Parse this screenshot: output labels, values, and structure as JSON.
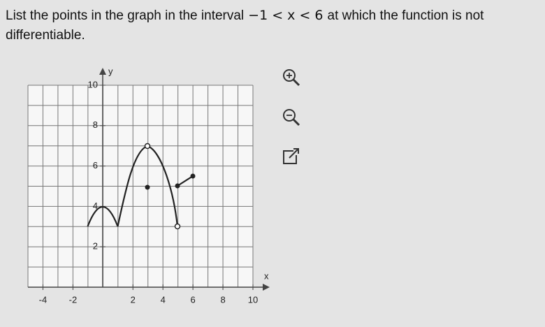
{
  "question": {
    "before": "List the points in the graph in the interval",
    "interval": "−1 < x < 6",
    "after": "at which the function is not differentiable."
  },
  "graph": {
    "x_label": "x",
    "y_label": "y",
    "xlim": [
      -5,
      10
    ],
    "ylim": [
      0,
      10
    ],
    "xticks": [
      -4,
      -2,
      2,
      4,
      6,
      8,
      10
    ],
    "yticks": [
      2,
      4,
      6,
      8,
      10
    ]
  }
}
